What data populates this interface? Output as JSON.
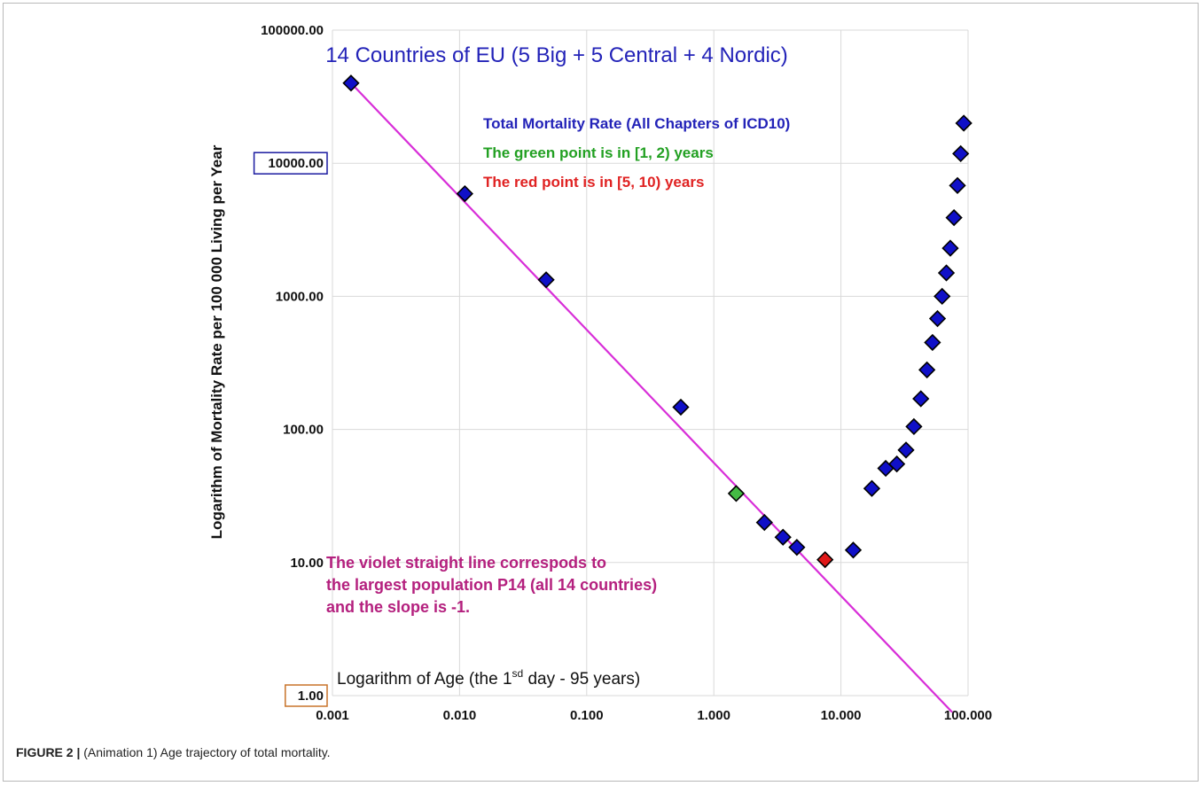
{
  "figure": {
    "label": "FIGURE 2 |",
    "caption": "(Animation 1) Age trajectory of total mortality."
  },
  "colors": {
    "marker_blue": "#1010c8",
    "marker_green": "#44bb44",
    "marker_red": "#e01818",
    "line_violet": "#d82ed8",
    "title_blue": "#2323b8",
    "legend_green": "#22a022",
    "legend_red": "#e02222",
    "annotation_magenta": "#b4207e",
    "highlight_box_blue": "#1a1aa0",
    "highlight_box_orange": "#c8742a",
    "grid": "#d9d9d9"
  },
  "chart_data": {
    "type": "scatter",
    "title": "14 Countries of EU (5 Big + 5 Central + 4 Nordic)",
    "xlabel_main": "Logarithm of Age (the 1",
    "xlabel_sup": "sd",
    "xlabel_rest": " day - 95 years)",
    "ylabel": "Logarithm of Mortality Rate per 100 000 Living per Year",
    "xscale": "log",
    "yscale": "log",
    "xlim": [
      0.001,
      100
    ],
    "ylim": [
      1,
      100000
    ],
    "grid": true,
    "x_tick_values": [
      0.001,
      0.01,
      0.1,
      1,
      10,
      100
    ],
    "x_tick_labels": [
      "0.001",
      "0.010",
      "0.100",
      "1.000",
      "10.000",
      "100.000"
    ],
    "y_tick_values": [
      1,
      10,
      100,
      1000,
      10000,
      100000
    ],
    "y_tick_labels": [
      "1.00",
      "10.00",
      "100.00",
      "1000.00",
      "10000.00",
      "100000.00"
    ],
    "boxed_y_ticks": [
      {
        "value": 10000,
        "color_key": "highlight_box_blue"
      },
      {
        "value": 1,
        "color_key": "highlight_box_orange"
      }
    ],
    "legend": [
      {
        "text": "Total Mortality Rate (All Chapters of ICD10)",
        "color_key": "title_blue"
      },
      {
        "text": "The green point is in [1, 2) years",
        "color_key": "legend_green"
      },
      {
        "text": "The red point is in [5, 10) years",
        "color_key": "legend_red"
      }
    ],
    "annotation": [
      "The violet straight line  correspods to",
      "the largest population P14 (all 14 countries)",
      "and the slope is -1."
    ],
    "fit_line": {
      "slope": -1,
      "x": [
        0.0014,
        75
      ],
      "y": [
        40000,
        0.75
      ]
    },
    "series": [
      {
        "color_key": "marker_blue",
        "x": [
          0.0014,
          0.011,
          0.048,
          0.55,
          2.5,
          3.5,
          4.5,
          12.5,
          17.5,
          22.5,
          27.5,
          32.5,
          37.5,
          42.5,
          47.5,
          52.5,
          57.5,
          62.5,
          67.5,
          72.5,
          77.5,
          82.5,
          87.5,
          92.5
        ],
        "y": [
          40000,
          5900,
          1330,
          147,
          20,
          15.5,
          13,
          12.4,
          36,
          51,
          55,
          70,
          105,
          170,
          280,
          450,
          680,
          1000,
          1500,
          2300,
          3900,
          6800,
          11800,
          20000
        ]
      },
      {
        "color_key": "marker_green",
        "x": [
          1.5
        ],
        "y": [
          33
        ]
      },
      {
        "color_key": "marker_red",
        "x": [
          7.5
        ],
        "y": [
          10.5
        ]
      }
    ]
  }
}
